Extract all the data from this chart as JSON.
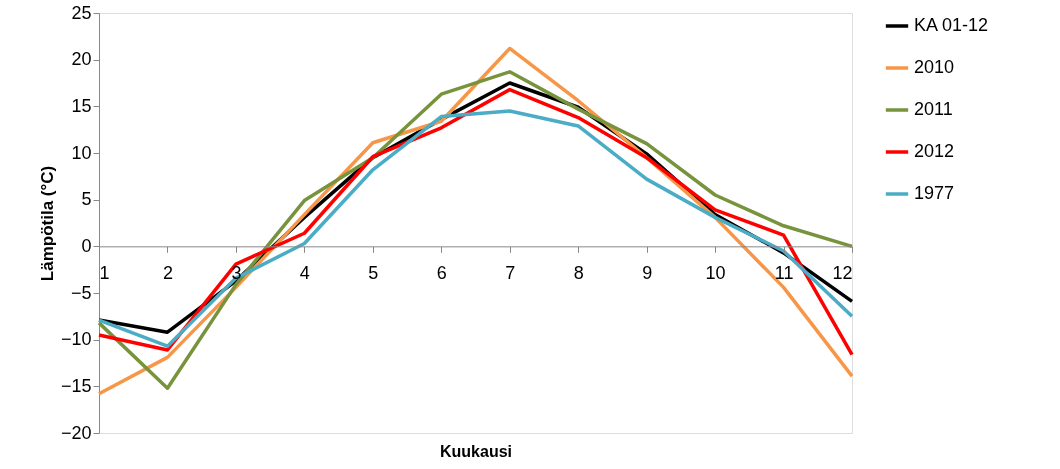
{
  "chart_data": {
    "type": "line",
    "xlabel": "Kuukausi",
    "ylabel": "Lämpötila (°C)",
    "x": [
      1,
      2,
      3,
      4,
      5,
      6,
      7,
      8,
      9,
      10,
      11,
      12
    ],
    "xlim": [
      1,
      12
    ],
    "xticks": [
      1,
      2,
      3,
      4,
      5,
      6,
      7,
      8,
      9,
      10,
      11,
      12
    ],
    "ylim": [
      -20,
      25
    ],
    "yticks": [
      -20,
      -15,
      -10,
      -5,
      0,
      5,
      10,
      15,
      20,
      25
    ],
    "grid": false,
    "legend": "right",
    "marker": "none",
    "line_style": "solid",
    "series": [
      {
        "name": "KA 01-12",
        "color": "#000000",
        "values": [
          -7.9,
          -9.2,
          -3.7,
          3.1,
          9.5,
          13.6,
          17.5,
          14.9,
          9.9,
          3.4,
          -0.7,
          -5.9
        ]
      },
      {
        "name": "2010",
        "color": "#f79646",
        "values": [
          -15.8,
          -11.9,
          -4.4,
          3.4,
          11.1,
          13.4,
          21.2,
          15.6,
          9.5,
          3.1,
          -4.4,
          -13.9
        ]
      },
      {
        "name": "2011",
        "color": "#77933c",
        "values": [
          -8.2,
          -15.2,
          -4.1,
          4.9,
          9.5,
          16.3,
          18.7,
          14.7,
          11.0,
          5.5,
          2.2,
          0
        ]
      },
      {
        "name": "2012",
        "color": "#ff0000",
        "values": [
          -9.5,
          -11.1,
          -1.9,
          1.4,
          9.6,
          12.7,
          16.8,
          13.8,
          9.5,
          3.9,
          1.2,
          -11.6
        ]
      },
      {
        "name": "1977",
        "color": "#4bacc6",
        "values": [
          -7.9,
          -10.7,
          -3.4,
          0.3,
          8.2,
          13.9,
          14.5,
          12.9,
          7.2,
          3.1,
          -0.5,
          -7.5
        ]
      }
    ]
  }
}
